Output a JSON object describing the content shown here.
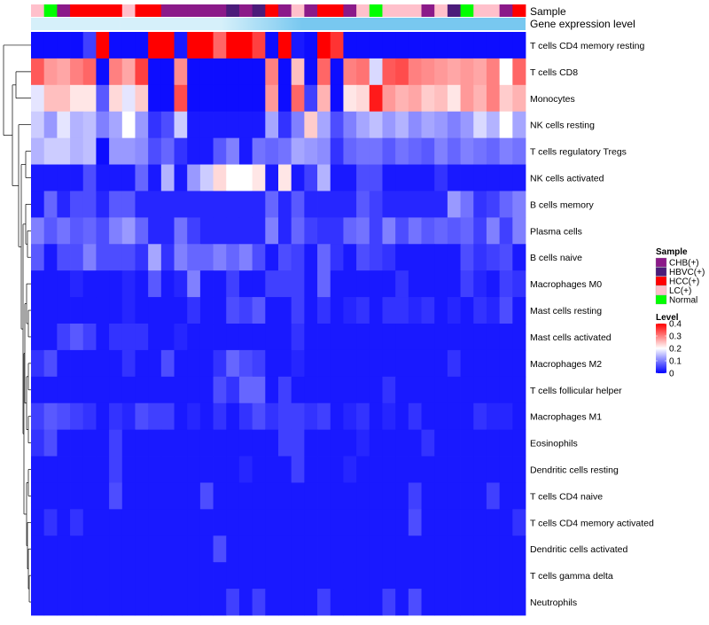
{
  "chart_data": {
    "type": "heatmap",
    "annotation_labels": [
      "Sample",
      "Gene expression level"
    ],
    "legend": {
      "sample_title": "Sample",
      "sample_groups": [
        {
          "name": "CHB(+)",
          "color": "#8B1A89"
        },
        {
          "name": "HBVC(+)",
          "color": "#4B1C7A"
        },
        {
          "name": "HCC(+)",
          "color": "#FF0000"
        },
        {
          "name": "LC(+)",
          "color": "#FFC0CB"
        },
        {
          "name": "Normal",
          "color": "#00FF00"
        }
      ],
      "level_title": "Level",
      "level_ticks": [
        0.4,
        0.3,
        0.2,
        0.1,
        0
      ],
      "level_range": [
        0,
        0.4
      ]
    },
    "column_samples": [
      "LC(+)",
      "Normal",
      "CHB(+)",
      "HCC(+)",
      "HCC(+)",
      "HCC(+)",
      "HCC(+)",
      "LC(+)",
      "HCC(+)",
      "HCC(+)",
      "CHB(+)",
      "CHB(+)",
      "CHB(+)",
      "CHB(+)",
      "CHB(+)",
      "HBVC(+)",
      "CHB(+)",
      "HBVC(+)",
      "HCC(+)",
      "CHB(+)",
      "LC(+)",
      "CHB(+)",
      "HCC(+)",
      "HCC(+)",
      "CHB(+)",
      "LC(+)",
      "Normal",
      "LC(+)",
      "LC(+)",
      "LC(+)",
      "CHB(+)",
      "LC(+)",
      "HBVC(+)",
      "Normal",
      "LC(+)",
      "LC(+)",
      "CHB(+)",
      "HCC(+)"
    ],
    "expression_bar": {
      "light_color": "#D6F0FA",
      "dark_color": "#78C8F0",
      "split_fraction": 0.18
    },
    "colorscale": {
      "low": "#0000FF",
      "mid": "#FFFFFF",
      "high": "#FF0000",
      "mid_value": 0.2,
      "max": 0.4
    },
    "rows": [
      {
        "name": "T cells CD4 memory resting",
        "values": [
          0.01,
          0.01,
          0.01,
          0.01,
          0.05,
          0.4,
          0.01,
          0.01,
          0.01,
          0.4,
          0.4,
          0.02,
          0.4,
          0.4,
          0.32,
          0.4,
          0.4,
          0.35,
          0.01,
          0.4,
          0.02,
          0.01,
          0.4,
          0.36,
          0.01,
          0.01,
          0.01,
          0.01,
          0.01,
          0.01,
          0.01,
          0.01,
          0.01,
          0.01,
          0.01,
          0.01,
          0.01,
          0.01
        ]
      },
      {
        "name": "T cells CD8",
        "values": [
          0.33,
          0.28,
          0.27,
          0.3,
          0.32,
          0.01,
          0.3,
          0.27,
          0.35,
          0.01,
          0.01,
          0.29,
          0.01,
          0.01,
          0.01,
          0.01,
          0.01,
          0.01,
          0.3,
          0.01,
          0.25,
          0.01,
          0.32,
          0.01,
          0.3,
          0.31,
          0.17,
          0.33,
          0.34,
          0.3,
          0.29,
          0.28,
          0.27,
          0.28,
          0.27,
          0.3,
          0.2,
          0.32
        ]
      },
      {
        "name": "Monocytes",
        "values": [
          0.18,
          0.25,
          0.25,
          0.22,
          0.22,
          0.07,
          0.23,
          0.18,
          0.24,
          0.01,
          0.01,
          0.34,
          0.01,
          0.01,
          0.01,
          0.01,
          0.01,
          0.01,
          0.28,
          0.01,
          0.32,
          0.05,
          0.26,
          0.01,
          0.22,
          0.23,
          0.38,
          0.28,
          0.26,
          0.27,
          0.24,
          0.25,
          0.22,
          0.28,
          0.26,
          0.3,
          0.24,
          0.26
        ]
      },
      {
        "name": "NK cells resting",
        "values": [
          0.16,
          0.12,
          0.18,
          0.14,
          0.15,
          0.1,
          0.13,
          0.2,
          0.12,
          0.04,
          0.06,
          0.16,
          0.02,
          0.02,
          0.02,
          0.02,
          0.02,
          0.02,
          0.13,
          0.04,
          0.1,
          0.24,
          0.13,
          0.06,
          0.1,
          0.13,
          0.15,
          0.12,
          0.14,
          0.11,
          0.13,
          0.12,
          0.1,
          0.12,
          0.17,
          0.14,
          0.2,
          0.13
        ]
      },
      {
        "name": "T cells regulatory  Tregs",
        "values": [
          0.14,
          0.16,
          0.16,
          0.14,
          0.15,
          0.01,
          0.12,
          0.12,
          0.11,
          0.06,
          0.08,
          0.04,
          0.02,
          0.02,
          0.07,
          0.1,
          0.02,
          0.09,
          0.08,
          0.09,
          0.13,
          0.12,
          0.11,
          0.04,
          0.08,
          0.09,
          0.09,
          0.07,
          0.09,
          0.08,
          0.07,
          0.1,
          0.08,
          0.1,
          0.09,
          0.08,
          0.1,
          0.09
        ]
      },
      {
        "name": "NK cells activated",
        "values": [
          0.02,
          0.02,
          0.02,
          0.02,
          0.06,
          0.02,
          0.02,
          0.02,
          0.08,
          0.02,
          0.14,
          0.02,
          0.12,
          0.16,
          0.23,
          0.2,
          0.2,
          0.22,
          0.02,
          0.22,
          0.02,
          0.05,
          0.14,
          0.02,
          0.02,
          0.06,
          0.06,
          0.02,
          0.02,
          0.02,
          0.02,
          0.04,
          0.02,
          0.02,
          0.02,
          0.02,
          0.02,
          0.02
        ]
      },
      {
        "name": "B cells memory",
        "values": [
          0.02,
          0.08,
          0.03,
          0.06,
          0.06,
          0.03,
          0.07,
          0.07,
          0.03,
          0.03,
          0.03,
          0.03,
          0.03,
          0.03,
          0.03,
          0.03,
          0.03,
          0.03,
          0.08,
          0.03,
          0.07,
          0.03,
          0.03,
          0.03,
          0.03,
          0.07,
          0.05,
          0.03,
          0.03,
          0.03,
          0.03,
          0.03,
          0.12,
          0.09,
          0.04,
          0.05,
          0.08,
          0.1
        ]
      },
      {
        "name": "Plasma cells",
        "values": [
          0.1,
          0.07,
          0.09,
          0.07,
          0.08,
          0.06,
          0.1,
          0.12,
          0.08,
          0.03,
          0.03,
          0.09,
          0.05,
          0.03,
          0.03,
          0.03,
          0.03,
          0.03,
          0.1,
          0.03,
          0.08,
          0.05,
          0.04,
          0.04,
          0.08,
          0.09,
          0.05,
          0.1,
          0.06,
          0.09,
          0.07,
          0.08,
          0.07,
          0.08,
          0.05,
          0.1,
          0.05,
          0.1
        ]
      },
      {
        "name": "B cells naive",
        "values": [
          0.07,
          0.02,
          0.06,
          0.06,
          0.1,
          0.06,
          0.06,
          0.06,
          0.04,
          0.13,
          0.04,
          0.1,
          0.08,
          0.08,
          0.1,
          0.08,
          0.1,
          0.06,
          0.02,
          0.06,
          0.05,
          0.02,
          0.08,
          0.04,
          0.02,
          0.06,
          0.05,
          0.04,
          0.02,
          0.02,
          0.02,
          0.02,
          0.02,
          0.06,
          0.04,
          0.05,
          0.06,
          0.02
        ]
      },
      {
        "name": "Macrophages M0",
        "values": [
          0.02,
          0.02,
          0.02,
          0.03,
          0.02,
          0.02,
          0.02,
          0.03,
          0.02,
          0.07,
          0.02,
          0.03,
          0.1,
          0.02,
          0.02,
          0.05,
          0.02,
          0.02,
          0.05,
          0.05,
          0.05,
          0.02,
          0.08,
          0.02,
          0.02,
          0.02,
          0.02,
          0.02,
          0.04,
          0.02,
          0.02,
          0.02,
          0.02,
          0.05,
          0.03,
          0.02,
          0.05,
          0.04
        ]
      },
      {
        "name": "Mast cells resting",
        "values": [
          0.02,
          0.02,
          0.02,
          0.02,
          0.02,
          0.02,
          0.02,
          0.03,
          0.02,
          0.02,
          0.02,
          0.02,
          0.04,
          0.02,
          0.02,
          0.06,
          0.05,
          0.07,
          0.02,
          0.02,
          0.05,
          0.02,
          0.04,
          0.02,
          0.03,
          0.04,
          0.02,
          0.04,
          0.04,
          0.03,
          0.04,
          0.02,
          0.03,
          0.02,
          0.04,
          0.03,
          0.06,
          0.02
        ]
      },
      {
        "name": "Mast cells activated",
        "values": [
          0.02,
          0.02,
          0.05,
          0.07,
          0.05,
          0.02,
          0.04,
          0.04,
          0.04,
          0.02,
          0.02,
          0.03,
          0.02,
          0.02,
          0.02,
          0.02,
          0.02,
          0.02,
          0.02,
          0.02,
          0.04,
          0.02,
          0.02,
          0.02,
          0.02,
          0.02,
          0.02,
          0.02,
          0.02,
          0.02,
          0.02,
          0.02,
          0.02,
          0.02,
          0.02,
          0.02,
          0.02,
          0.02
        ]
      },
      {
        "name": "Macrophages M2",
        "values": [
          0.04,
          0.06,
          0.02,
          0.02,
          0.02,
          0.02,
          0.02,
          0.04,
          0.02,
          0.02,
          0.06,
          0.02,
          0.02,
          0.02,
          0.04,
          0.08,
          0.06,
          0.05,
          0.02,
          0.02,
          0.03,
          0.02,
          0.02,
          0.02,
          0.02,
          0.02,
          0.02,
          0.02,
          0.02,
          0.02,
          0.02,
          0.02,
          0.04,
          0.02,
          0.02,
          0.02,
          0.02,
          0.02
        ]
      },
      {
        "name": "T cells follicular helper",
        "values": [
          0.02,
          0.02,
          0.02,
          0.02,
          0.02,
          0.02,
          0.02,
          0.02,
          0.02,
          0.02,
          0.02,
          0.02,
          0.02,
          0.02,
          0.06,
          0.04,
          0.08,
          0.08,
          0.02,
          0.05,
          0.02,
          0.02,
          0.02,
          0.02,
          0.02,
          0.02,
          0.02,
          0.04,
          0.02,
          0.02,
          0.02,
          0.02,
          0.02,
          0.02,
          0.02,
          0.02,
          0.02,
          0.02
        ]
      },
      {
        "name": "Macrophages M1",
        "values": [
          0.05,
          0.07,
          0.06,
          0.05,
          0.04,
          0.02,
          0.04,
          0.03,
          0.06,
          0.05,
          0.05,
          0.02,
          0.03,
          0.02,
          0.04,
          0.02,
          0.04,
          0.06,
          0.04,
          0.05,
          0.05,
          0.04,
          0.05,
          0.02,
          0.03,
          0.04,
          0.02,
          0.03,
          0.02,
          0.04,
          0.02,
          0.02,
          0.02,
          0.02,
          0.04,
          0.03,
          0.03,
          0.02
        ]
      },
      {
        "name": "Eosinophils",
        "values": [
          0.04,
          0.06,
          0.02,
          0.02,
          0.02,
          0.02,
          0.05,
          0.02,
          0.02,
          0.02,
          0.02,
          0.02,
          0.02,
          0.02,
          0.02,
          0.02,
          0.02,
          0.02,
          0.02,
          0.05,
          0.05,
          0.02,
          0.02,
          0.02,
          0.02,
          0.03,
          0.02,
          0.02,
          0.02,
          0.02,
          0.04,
          0.02,
          0.02,
          0.02,
          0.02,
          0.02,
          0.02,
          0.02
        ]
      },
      {
        "name": "Dendritic cells resting",
        "values": [
          0.02,
          0.02,
          0.02,
          0.02,
          0.02,
          0.02,
          0.05,
          0.02,
          0.02,
          0.02,
          0.02,
          0.02,
          0.02,
          0.02,
          0.02,
          0.02,
          0.03,
          0.02,
          0.02,
          0.02,
          0.05,
          0.02,
          0.02,
          0.02,
          0.03,
          0.02,
          0.02,
          0.02,
          0.02,
          0.02,
          0.02,
          0.02,
          0.02,
          0.02,
          0.02,
          0.02,
          0.02,
          0.02
        ]
      },
      {
        "name": "T cells CD4 naive",
        "values": [
          0.02,
          0.02,
          0.02,
          0.02,
          0.02,
          0.02,
          0.06,
          0.02,
          0.02,
          0.02,
          0.02,
          0.02,
          0.02,
          0.06,
          0.02,
          0.02,
          0.02,
          0.02,
          0.02,
          0.02,
          0.02,
          0.02,
          0.02,
          0.02,
          0.02,
          0.02,
          0.02,
          0.02,
          0.02,
          0.05,
          0.02,
          0.02,
          0.02,
          0.02,
          0.02,
          0.05,
          0.02,
          0.02
        ]
      },
      {
        "name": "T cells CD4 memory activated",
        "values": [
          0.02,
          0.04,
          0.02,
          0.04,
          0.02,
          0.02,
          0.02,
          0.02,
          0.02,
          0.02,
          0.02,
          0.02,
          0.02,
          0.02,
          0.02,
          0.02,
          0.02,
          0.02,
          0.02,
          0.02,
          0.02,
          0.02,
          0.02,
          0.02,
          0.02,
          0.02,
          0.02,
          0.02,
          0.02,
          0.06,
          0.02,
          0.02,
          0.02,
          0.02,
          0.02,
          0.02,
          0.02,
          0.04
        ]
      },
      {
        "name": "Dendritic cells activated",
        "values": [
          0.02,
          0.02,
          0.02,
          0.02,
          0.02,
          0.02,
          0.02,
          0.02,
          0.02,
          0.02,
          0.02,
          0.02,
          0.02,
          0.02,
          0.06,
          0.02,
          0.02,
          0.02,
          0.02,
          0.02,
          0.02,
          0.02,
          0.02,
          0.02,
          0.02,
          0.02,
          0.02,
          0.02,
          0.02,
          0.02,
          0.02,
          0.02,
          0.02,
          0.02,
          0.02,
          0.02,
          0.02,
          0.02
        ]
      },
      {
        "name": "T cells gamma delta",
        "values": [
          0.02,
          0.02,
          0.02,
          0.02,
          0.02,
          0.02,
          0.02,
          0.02,
          0.02,
          0.02,
          0.02,
          0.02,
          0.02,
          0.02,
          0.02,
          0.02,
          0.02,
          0.02,
          0.02,
          0.02,
          0.02,
          0.02,
          0.02,
          0.02,
          0.02,
          0.02,
          0.02,
          0.02,
          0.02,
          0.02,
          0.02,
          0.02,
          0.02,
          0.02,
          0.02,
          0.02,
          0.02,
          0.02
        ]
      },
      {
        "name": "Neutrophils",
        "values": [
          0.02,
          0.02,
          0.02,
          0.02,
          0.02,
          0.02,
          0.02,
          0.02,
          0.02,
          0.02,
          0.02,
          0.02,
          0.02,
          0.02,
          0.02,
          0.05,
          0.02,
          0.05,
          0.02,
          0.02,
          0.02,
          0.02,
          0.05,
          0.02,
          0.02,
          0.02,
          0.02,
          0.05,
          0.02,
          0.06,
          0.02,
          0.02,
          0.02,
          0.02,
          0.02,
          0.02,
          0.02,
          0.02
        ]
      }
    ]
  }
}
